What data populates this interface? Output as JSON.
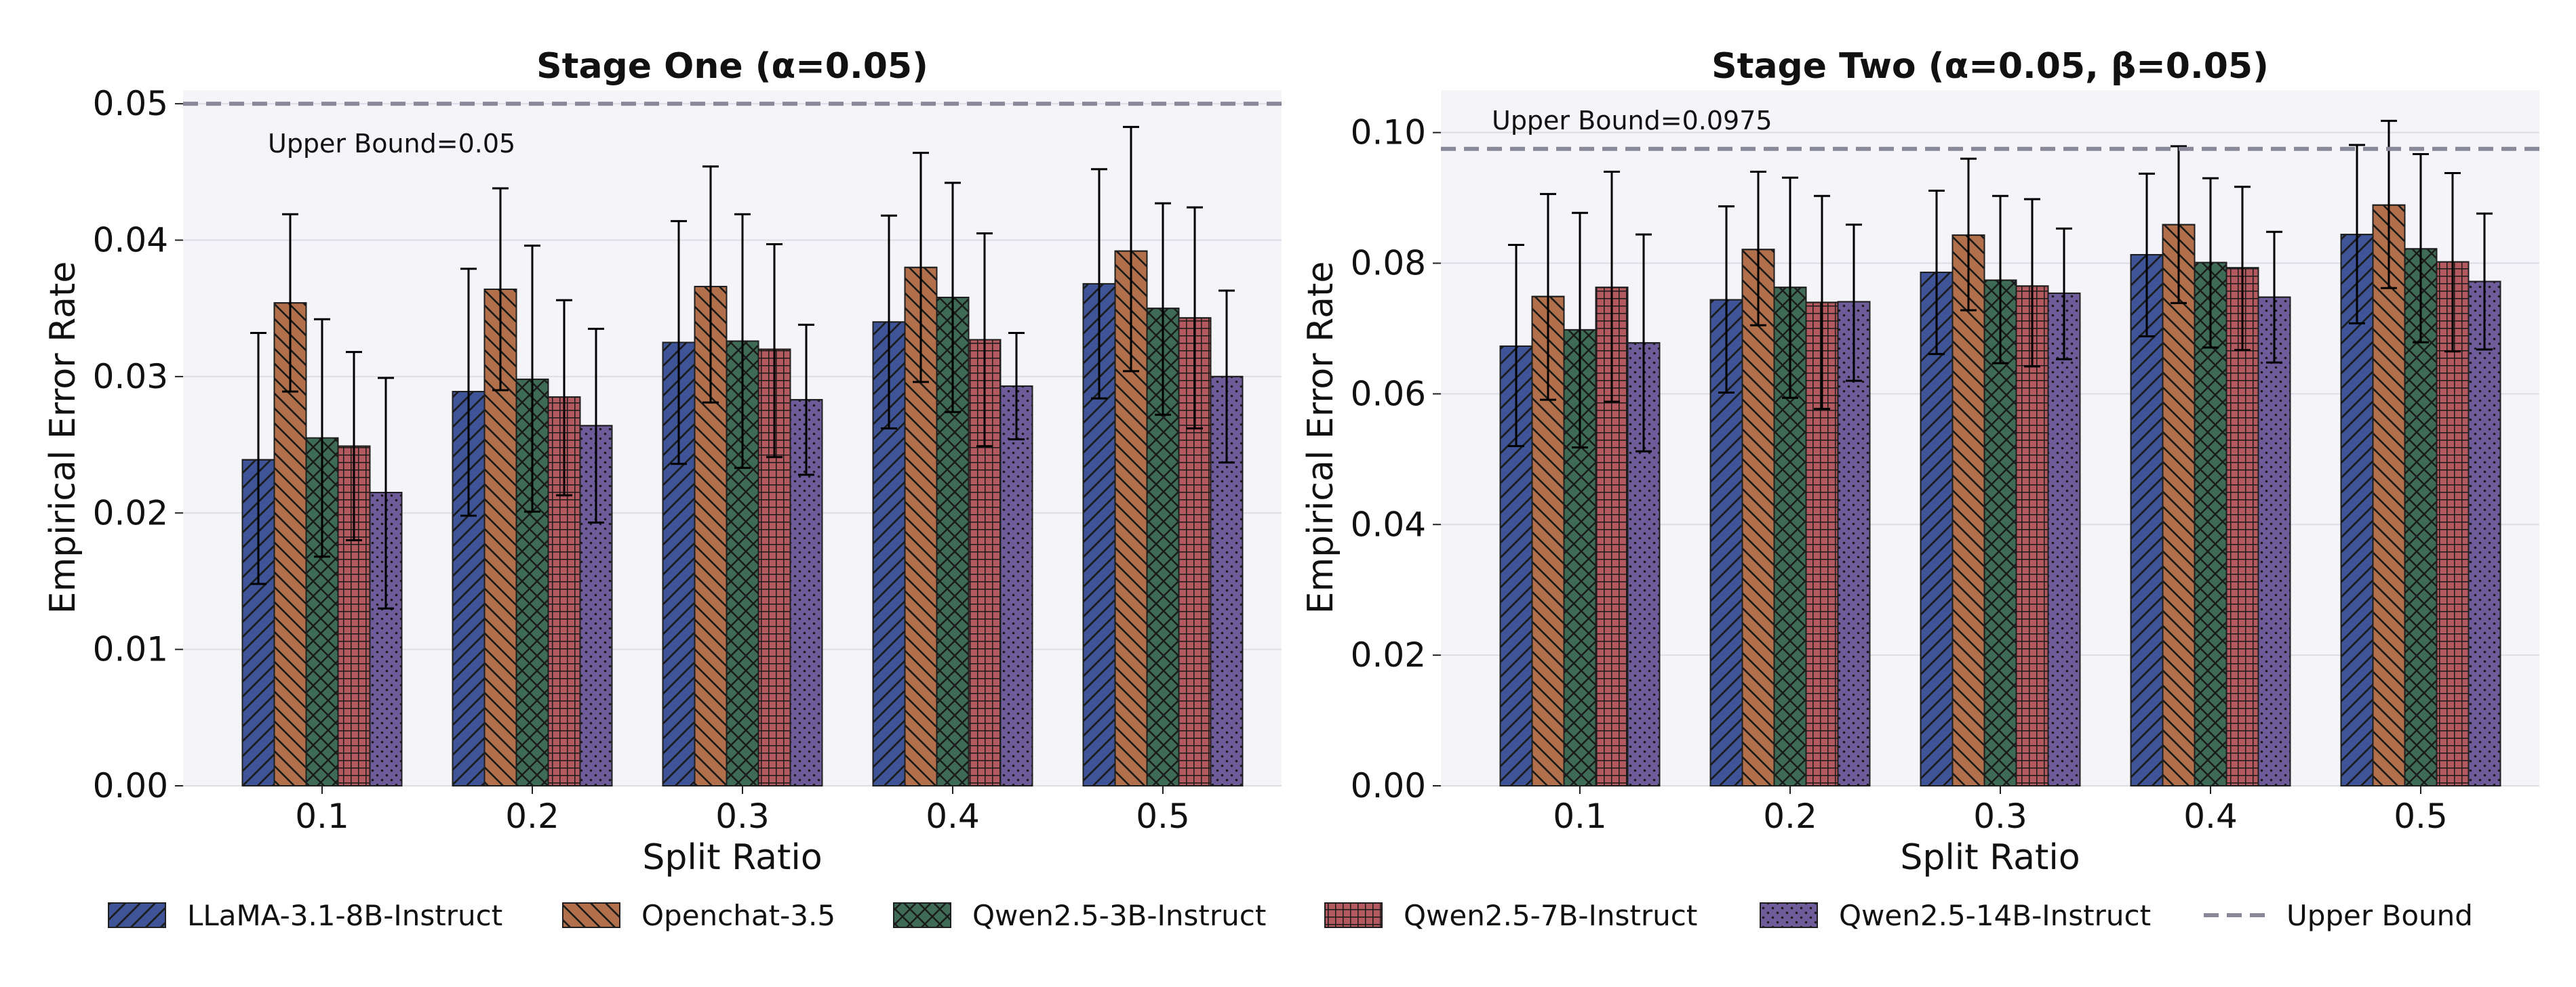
{
  "colors": {
    "panel_bg": "#F4F4F9",
    "grid": "#DDDDE6",
    "bound_line": "#888898",
    "edge": "#1F1F1F"
  },
  "legend": {
    "bound_label": "Upper Bound"
  },
  "series_style": [
    {
      "name": "LLaMA-3.1-8B-Instruct",
      "color": "#3E5496",
      "hatch": "diag"
    },
    {
      "name": "Openchat-3.5",
      "color": "#B16F4C",
      "hatch": "backdiag"
    },
    {
      "name": "Qwen2.5-3B-Instruct",
      "color": "#3D6B56",
      "hatch": "cross"
    },
    {
      "name": "Qwen2.5-7B-Instruct",
      "color": "#B25A5F",
      "hatch": "grid"
    },
    {
      "name": "Qwen2.5-14B-Instruct",
      "color": "#6E5C9A",
      "hatch": "dots"
    }
  ],
  "chart_data": [
    {
      "type": "bar",
      "title": "Stage One (α=0.05)",
      "xlabel": "Split Ratio",
      "ylabel": "Empirical Error Rate",
      "categories": [
        "0.1",
        "0.2",
        "0.3",
        "0.4",
        "0.5"
      ],
      "ylim": [
        0,
        0.051
      ],
      "yticks": [
        0.0,
        0.01,
        0.02,
        0.03,
        0.04,
        0.05
      ],
      "ytick_labels": [
        "0.00",
        "0.01",
        "0.02",
        "0.03",
        "0.04",
        "0.05"
      ],
      "upper_bound": 0.05,
      "upper_bound_label": "Upper Bound=0.05",
      "series": [
        {
          "name": "LLaMA-3.1-8B-Instruct",
          "values": [
            0.0239,
            0.0289,
            0.0325,
            0.034,
            0.0368
          ],
          "err_low": [
            0.0148,
            0.0198,
            0.0236,
            0.0262,
            0.0284
          ],
          "err_high": [
            0.0332,
            0.0379,
            0.0414,
            0.0418,
            0.0452
          ]
        },
        {
          "name": "Openchat-3.5",
          "values": [
            0.0354,
            0.0364,
            0.0366,
            0.038,
            0.0392
          ],
          "err_low": [
            0.0289,
            0.029,
            0.0281,
            0.0296,
            0.0304
          ],
          "err_high": [
            0.0419,
            0.0438,
            0.0454,
            0.0464,
            0.0483
          ]
        },
        {
          "name": "Qwen2.5-3B-Instruct",
          "values": [
            0.0255,
            0.0298,
            0.0326,
            0.0358,
            0.035
          ],
          "err_low": [
            0.0168,
            0.0201,
            0.0233,
            0.0274,
            0.0272
          ],
          "err_high": [
            0.0342,
            0.0396,
            0.0419,
            0.0442,
            0.0427
          ]
        },
        {
          "name": "Qwen2.5-7B-Instruct",
          "values": [
            0.0249,
            0.0285,
            0.032,
            0.0327,
            0.0343
          ],
          "err_low": [
            0.018,
            0.0213,
            0.0241,
            0.0249,
            0.0262
          ],
          "err_high": [
            0.0318,
            0.0356,
            0.0397,
            0.0405,
            0.0424
          ]
        },
        {
          "name": "Qwen2.5-14B-Instruct",
          "values": [
            0.0215,
            0.0264,
            0.0283,
            0.0293,
            0.03
          ],
          "err_low": [
            0.013,
            0.0193,
            0.0228,
            0.0254,
            0.0237
          ],
          "err_high": [
            0.0299,
            0.0335,
            0.0338,
            0.0332,
            0.0363
          ]
        }
      ]
    },
    {
      "type": "bar",
      "title": "Stage Two (α=0.05, β=0.05)",
      "xlabel": "Split Ratio",
      "ylabel": "Empirical Error Rate",
      "categories": [
        "0.1",
        "0.2",
        "0.3",
        "0.4",
        "0.5"
      ],
      "ylim": [
        0,
        0.1065
      ],
      "yticks": [
        0.0,
        0.02,
        0.04,
        0.06,
        0.08,
        0.1
      ],
      "ytick_labels": [
        "0.00",
        "0.02",
        "0.04",
        "0.06",
        "0.08",
        "0.10"
      ],
      "upper_bound": 0.0975,
      "upper_bound_label": "Upper Bound=0.0975",
      "series": [
        {
          "name": "LLaMA-3.1-8B-Instruct",
          "values": [
            0.0673,
            0.0744,
            0.0786,
            0.0813,
            0.0844
          ],
          "err_low": [
            0.052,
            0.0602,
            0.0661,
            0.0688,
            0.0708
          ],
          "err_high": [
            0.0828,
            0.0887,
            0.0911,
            0.0937,
            0.0981
          ]
        },
        {
          "name": "Openchat-3.5",
          "values": [
            0.0749,
            0.0821,
            0.0843,
            0.0859,
            0.0889
          ],
          "err_low": [
            0.0591,
            0.0705,
            0.0728,
            0.0739,
            0.0762
          ],
          "err_high": [
            0.0906,
            0.094,
            0.096,
            0.0979,
            0.1018
          ]
        },
        {
          "name": "Qwen2.5-3B-Instruct",
          "values": [
            0.0698,
            0.0763,
            0.0774,
            0.0801,
            0.0822
          ],
          "err_low": [
            0.0518,
            0.0594,
            0.0647,
            0.0671,
            0.0679
          ],
          "err_high": [
            0.0877,
            0.0931,
            0.0903,
            0.093,
            0.0967
          ]
        },
        {
          "name": "Qwen2.5-7B-Instruct",
          "values": [
            0.0763,
            0.074,
            0.0765,
            0.0793,
            0.0802
          ],
          "err_low": [
            0.0588,
            0.0577,
            0.0642,
            0.0667,
            0.0665
          ],
          "err_high": [
            0.094,
            0.0903,
            0.0898,
            0.0917,
            0.0938
          ]
        },
        {
          "name": "Qwen2.5-14B-Instruct",
          "values": [
            0.0678,
            0.0741,
            0.0754,
            0.0748,
            0.0772
          ],
          "err_low": [
            0.0512,
            0.062,
            0.0653,
            0.0648,
            0.0668
          ],
          "err_high": [
            0.0844,
            0.0859,
            0.0853,
            0.0848,
            0.0876
          ]
        }
      ]
    }
  ]
}
